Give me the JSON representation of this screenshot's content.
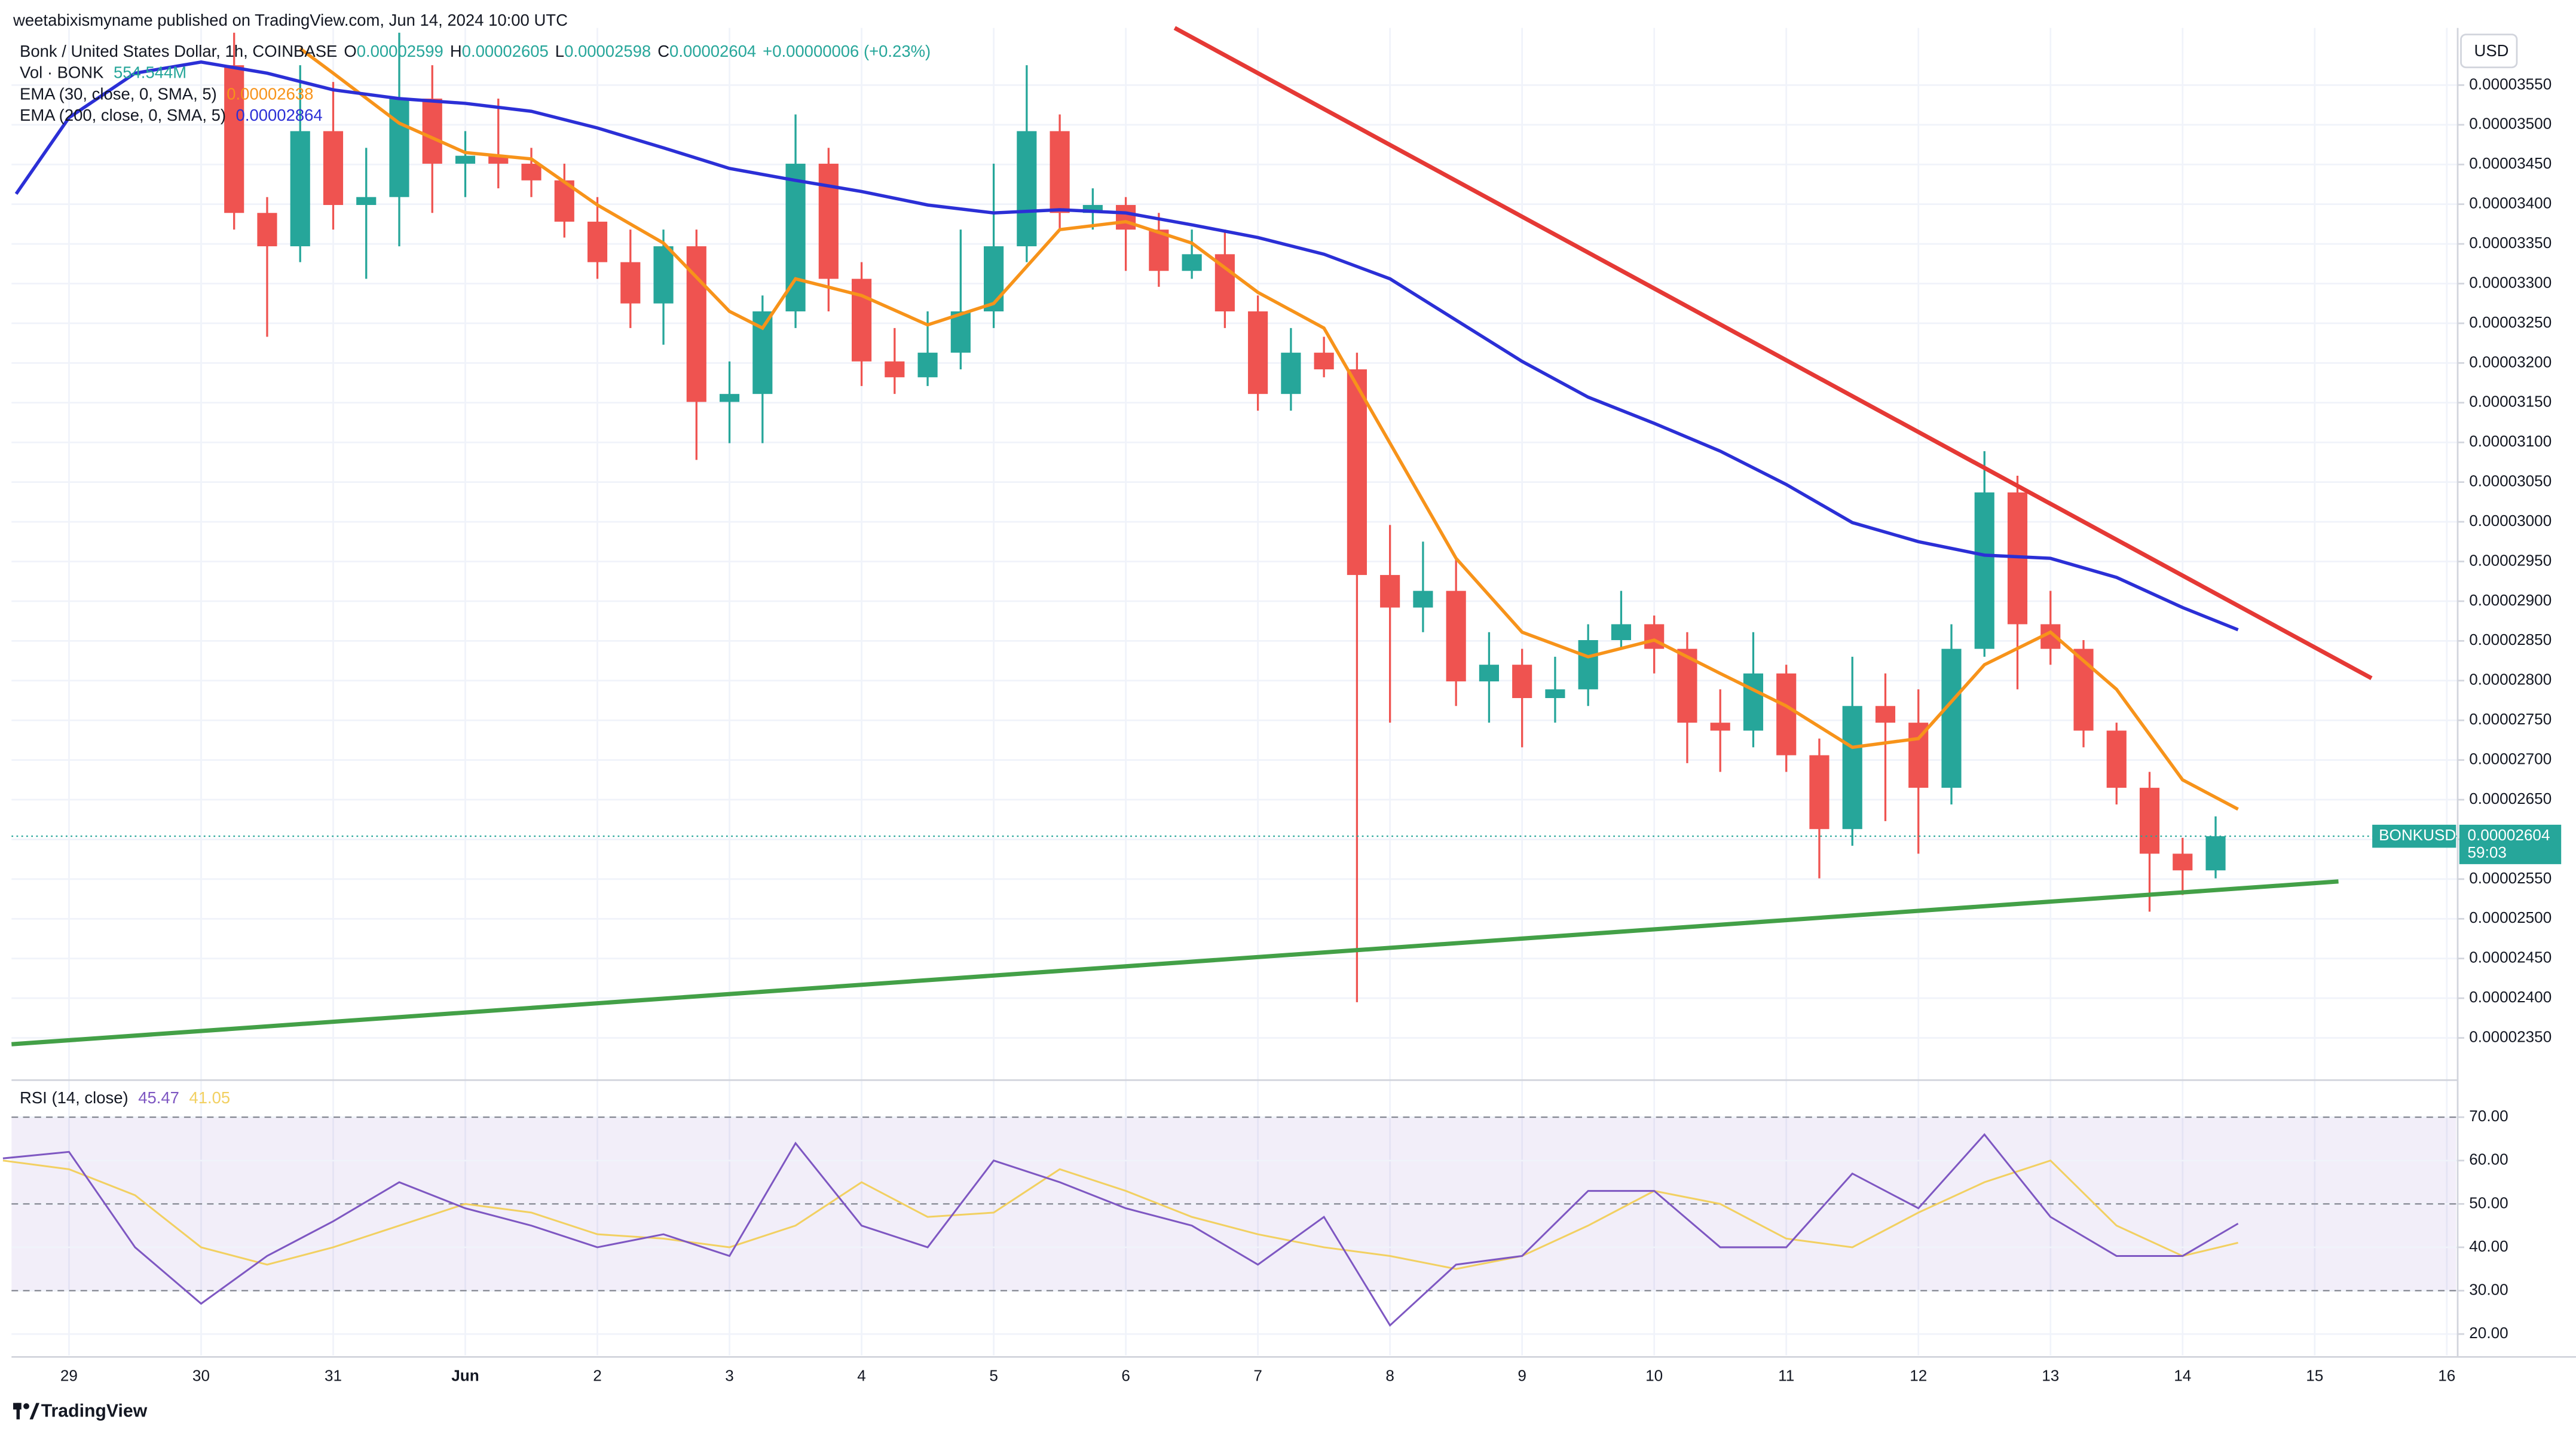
{
  "attribution": "weetabixismyname published on TradingView.com, Jun 14, 2024 10:00 UTC",
  "footer": "TradingView",
  "chart_data": [
    {
      "type": "candlestick",
      "title": "Bonk / United States Dollar, 1h, COINBASE",
      "ohlc_legend": [
        [
          "O",
          "0.00002599"
        ],
        [
          "H",
          "0.00002605"
        ],
        [
          "L",
          "0.00002598"
        ],
        [
          "C",
          "0.00002604"
        ]
      ],
      "change": "+0.00000006 (+0.23%)",
      "volume_legend": {
        "name": "Vol · BONK",
        "value": "554.544M"
      },
      "axis_unit": "USD",
      "symbol": "BONKUSD",
      "last_price": {
        "value": 2.604e-05,
        "label": "0.00002604"
      },
      "countdown": "59:03",
      "up_color": "#26a69a",
      "down_color": "#ef5350",
      "grid": true,
      "xlim": [
        -0.435,
        18.07
      ],
      "ylim": [
        2.302e-05,
        3.622e-05
      ],
      "yticks": [
        {
          "value": 2.35e-05,
          "label": "0.00002350"
        },
        {
          "value": 2.4e-05,
          "label": "0.00002400"
        },
        {
          "value": 2.45e-05,
          "label": "0.00002450"
        },
        {
          "value": 2.5e-05,
          "label": "0.00002500"
        },
        {
          "value": 2.55e-05,
          "label": "0.00002550"
        },
        {
          "value": 2.6e-05,
          "label": "0.00002600"
        },
        {
          "value": 2.65e-05,
          "label": "0.00002650"
        },
        {
          "value": 2.7e-05,
          "label": "0.00002700"
        },
        {
          "value": 2.75e-05,
          "label": "0.00002750"
        },
        {
          "value": 2.8e-05,
          "label": "0.00002800"
        },
        {
          "value": 2.85e-05,
          "label": "0.00002850"
        },
        {
          "value": 2.9e-05,
          "label": "0.00002900"
        },
        {
          "value": 2.95e-05,
          "label": "0.00002950"
        },
        {
          "value": 3e-05,
          "label": "0.00003000"
        },
        {
          "value": 3.05e-05,
          "label": "0.00003050"
        },
        {
          "value": 3.1e-05,
          "label": "0.00003100"
        },
        {
          "value": 3.15e-05,
          "label": "0.00003150"
        },
        {
          "value": 3.2e-05,
          "label": "0.00003200"
        },
        {
          "value": 3.25e-05,
          "label": "0.00003250"
        },
        {
          "value": 3.3e-05,
          "label": "0.00003300"
        },
        {
          "value": 3.35e-05,
          "label": "0.00003350"
        },
        {
          "value": 3.4e-05,
          "label": "0.00003400"
        },
        {
          "value": 3.45e-05,
          "label": "0.00003450"
        },
        {
          "value": 3.5e-05,
          "label": "0.00003500"
        },
        {
          "value": 3.55e-05,
          "label": "0.00003550"
        }
      ],
      "x": [
        1.25,
        1.5,
        1.75,
        2,
        2.25,
        2.5,
        2.75,
        3,
        3.25,
        3.5,
        3.75,
        4,
        4.25,
        4.5,
        4.75,
        5,
        5.25,
        5.5,
        5.75,
        6,
        6.25,
        6.5,
        6.75,
        7,
        7.25,
        7.5,
        7.75,
        8,
        8.25,
        8.5,
        8.75,
        9,
        9.25,
        9.5,
        9.75,
        10,
        10.25,
        10.5,
        10.75,
        11,
        11.25,
        11.5,
        11.75,
        12,
        12.25,
        12.5,
        12.75,
        13,
        13.25,
        13.5,
        13.75,
        14,
        14.25,
        14.5,
        14.75,
        15,
        15.25,
        15.5,
        15.75,
        16,
        16.25
      ],
      "open": [
        3.575e-05,
        3.389e-05,
        3.347e-05,
        3.492e-05,
        3.399e-05,
        3.409e-05,
        3.533e-05,
        3.451e-05,
        3.461e-05,
        3.451e-05,
        3.43e-05,
        3.378e-05,
        3.327e-05,
        3.275e-05,
        3.347e-05,
        3.151e-05,
        3.161e-05,
        3.265e-05,
        3.451e-05,
        3.306e-05,
        3.202e-05,
        3.182e-05,
        3.213e-05,
        3.265e-05,
        3.347e-05,
        3.492e-05,
        3.389e-05,
        3.399e-05,
        3.368e-05,
        3.316e-05,
        3.337e-05,
        3.265e-05,
        3.161e-05,
        3.213e-05,
        3.192e-05,
        2.933e-05,
        2.892e-05,
        2.913e-05,
        2.799e-05,
        2.82e-05,
        2.778e-05,
        2.789e-05,
        2.851e-05,
        2.871e-05,
        2.84e-05,
        2.747e-05,
        2.737e-05,
        2.809e-05,
        2.706e-05,
        2.613e-05,
        2.768e-05,
        2.747e-05,
        2.665e-05,
        2.84e-05,
        3.037e-05,
        2.871e-05,
        2.84e-05,
        2.737e-05,
        2.665e-05,
        2.582e-05,
        2.561e-05
      ],
      "high": [
        3.616e-05,
        3.409e-05,
        3.575e-05,
        3.554e-05,
        3.471e-05,
        3.616e-05,
        3.575e-05,
        3.492e-05,
        3.533e-05,
        3.471e-05,
        3.451e-05,
        3.409e-05,
        3.368e-05,
        3.368e-05,
        3.368e-05,
        3.202e-05,
        3.285e-05,
        3.513e-05,
        3.471e-05,
        3.327e-05,
        3.244e-05,
        3.265e-05,
        3.368e-05,
        3.451e-05,
        3.575e-05,
        3.513e-05,
        3.42e-05,
        3.409e-05,
        3.389e-05,
        3.368e-05,
        3.368e-05,
        3.285e-05,
        3.244e-05,
        3.233e-05,
        3.213e-05,
        2.996e-05,
        2.975e-05,
        2.954e-05,
        2.861e-05,
        2.84e-05,
        2.83e-05,
        2.871e-05,
        2.913e-05,
        2.882e-05,
        2.861e-05,
        2.789e-05,
        2.861e-05,
        2.82e-05,
        2.727e-05,
        2.83e-05,
        2.809e-05,
        2.789e-05,
        2.871e-05,
        3.089e-05,
        3.058e-05,
        2.913e-05,
        2.851e-05,
        2.747e-05,
        2.685e-05,
        2.602e-05,
        2.629e-05
      ],
      "low": [
        3.368e-05,
        3.233e-05,
        3.327e-05,
        3.368e-05,
        3.306e-05,
        3.347e-05,
        3.389e-05,
        3.409e-05,
        3.42e-05,
        3.409e-05,
        3.358e-05,
        3.306e-05,
        3.244e-05,
        3.223e-05,
        3.078e-05,
        3.099e-05,
        3.099e-05,
        3.244e-05,
        3.265e-05,
        3.171e-05,
        3.161e-05,
        3.171e-05,
        3.192e-05,
        3.244e-05,
        3.327e-05,
        3.368e-05,
        3.368e-05,
        3.316e-05,
        3.296e-05,
        3.306e-05,
        3.244e-05,
        3.14e-05,
        3.14e-05,
        3.182e-05,
        2.395e-05,
        2.747e-05,
        2.861e-05,
        2.768e-05,
        2.747e-05,
        2.716e-05,
        2.747e-05,
        2.768e-05,
        2.84e-05,
        2.809e-05,
        2.696e-05,
        2.685e-05,
        2.716e-05,
        2.685e-05,
        2.551e-05,
        2.592e-05,
        2.623e-05,
        2.582e-05,
        2.644e-05,
        2.83e-05,
        2.789e-05,
        2.82e-05,
        2.716e-05,
        2.644e-05,
        2.509e-05,
        2.53e-05,
        2.551e-05
      ],
      "close": [
        3.389e-05,
        3.347e-05,
        3.492e-05,
        3.399e-05,
        3.409e-05,
        3.533e-05,
        3.451e-05,
        3.461e-05,
        3.451e-05,
        3.43e-05,
        3.378e-05,
        3.327e-05,
        3.275e-05,
        3.347e-05,
        3.151e-05,
        3.161e-05,
        3.265e-05,
        3.451e-05,
        3.306e-05,
        3.202e-05,
        3.182e-05,
        3.213e-05,
        3.265e-05,
        3.347e-05,
        3.492e-05,
        3.389e-05,
        3.399e-05,
        3.368e-05,
        3.316e-05,
        3.337e-05,
        3.265e-05,
        3.161e-05,
        3.213e-05,
        3.192e-05,
        2.933e-05,
        2.892e-05,
        2.913e-05,
        2.799e-05,
        2.82e-05,
        2.778e-05,
        2.789e-05,
        2.851e-05,
        2.871e-05,
        2.84e-05,
        2.747e-05,
        2.737e-05,
        2.809e-05,
        2.706e-05,
        2.613e-05,
        2.768e-05,
        2.747e-05,
        2.665e-05,
        2.84e-05,
        3.037e-05,
        2.871e-05,
        2.84e-05,
        2.737e-05,
        2.665e-05,
        2.582e-05,
        2.561e-05,
        2.604e-05
      ],
      "lines": [
        {
          "name": "EMA (30, close, 0, SMA, 5)",
          "last": "0.00002638",
          "color": "#f7931a",
          "x": [
            1.75,
            2,
            2.5,
            3,
            3.5,
            4,
            4.5,
            5,
            5.25,
            5.5,
            6,
            6.5,
            7,
            7.5,
            8,
            8.5,
            9,
            9.5,
            10,
            10.5,
            11,
            11.5,
            12,
            12.5,
            13,
            13.5,
            14,
            14.5,
            15,
            15.5,
            16,
            16.42
          ],
          "values": [
            3.596e-05,
            3.565e-05,
            3.502e-05,
            3.465e-05,
            3.457e-05,
            3.399e-05,
            3.351e-05,
            3.265e-05,
            3.244e-05,
            3.306e-05,
            3.285e-05,
            3.248e-05,
            3.275e-05,
            3.368e-05,
            3.378e-05,
            3.351e-05,
            3.289e-05,
            3.244e-05,
            3.099e-05,
            2.954e-05,
            2.861e-05,
            2.83e-05,
            2.851e-05,
            2.809e-05,
            2.768e-05,
            2.716e-05,
            2.727e-05,
            2.82e-05,
            2.861e-05,
            2.789e-05,
            2.675e-05,
            2.638e-05
          ]
        },
        {
          "name": "EMA (200, close, 0, SMA, 5)",
          "last": "0.00002864",
          "color": "#2b2fd6",
          "x": [
            -0.4,
            0,
            0.5,
            1,
            1.5,
            2,
            2.5,
            3,
            3.5,
            4,
            4.5,
            5,
            5.5,
            6,
            6.5,
            7,
            7.5,
            8,
            8.5,
            9,
            9.5,
            10,
            10.5,
            11,
            11.5,
            12,
            12.5,
            13,
            13.5,
            14,
            14.5,
            15,
            15.5,
            16,
            16.42
          ],
          "values": [
            3.413e-05,
            3.509e-05,
            3.565e-05,
            3.579e-05,
            3.565e-05,
            3.544e-05,
            3.533e-05,
            3.527e-05,
            3.517e-05,
            3.496e-05,
            3.471e-05,
            3.445e-05,
            3.43e-05,
            3.416e-05,
            3.399e-05,
            3.389e-05,
            3.393e-05,
            3.389e-05,
            3.374e-05,
            3.358e-05,
            3.337e-05,
            3.306e-05,
            3.254e-05,
            3.202e-05,
            3.157e-05,
            3.124e-05,
            3.089e-05,
            3.047e-05,
            2.999e-05,
            2.975e-05,
            2.958e-05,
            2.954e-05,
            2.93e-05,
            2.892e-05,
            2.864e-05
          ]
        }
      ],
      "trendlines": [
        {
          "color": "#e53935",
          "x": [
            8.37,
            17.43
          ],
          "values": [
            3.622e-05,
            2.803e-05
          ]
        },
        {
          "color": "#43a047",
          "x": [
            -0.435,
            17.18
          ],
          "values": [
            2.342e-05,
            2.547e-05
          ]
        }
      ]
    },
    {
      "type": "line",
      "title": "RSI (14, close)",
      "grid": true,
      "xlim": [
        -0.435,
        18.07
      ],
      "ylim": [
        15.1,
        77.6
      ],
      "yticks": [
        {
          "value": 20,
          "label": "20.00"
        },
        {
          "value": 30,
          "label": "30.00"
        },
        {
          "value": 40,
          "label": "40.00"
        },
        {
          "value": 50,
          "label": "50.00"
        },
        {
          "value": 60,
          "label": "60.00"
        },
        {
          "value": 70,
          "label": "70.00"
        }
      ],
      "levels": [
        30,
        50,
        70
      ],
      "band_color": "#7e57c2",
      "xticks": [
        {
          "value": 0,
          "label": "29"
        },
        {
          "value": 1,
          "label": "30"
        },
        {
          "value": 2,
          "label": "31"
        },
        {
          "value": 3,
          "label": "Jun"
        },
        {
          "value": 4,
          "label": "2"
        },
        {
          "value": 5,
          "label": "3"
        },
        {
          "value": 6,
          "label": "4"
        },
        {
          "value": 7,
          "label": "5"
        },
        {
          "value": 8,
          "label": "6"
        },
        {
          "value": 9,
          "label": "7"
        },
        {
          "value": 10,
          "label": "8"
        },
        {
          "value": 11,
          "label": "9"
        },
        {
          "value": 12,
          "label": "10"
        },
        {
          "value": 13,
          "label": "11"
        },
        {
          "value": 14,
          "label": "12"
        },
        {
          "value": 15,
          "label": "13"
        },
        {
          "value": 16,
          "label": "14"
        },
        {
          "value": 17,
          "label": "15"
        },
        {
          "value": 18,
          "label": "16"
        }
      ],
      "series": [
        {
          "last": "45.47",
          "color": "#7e57c2",
          "x": [
            -0.5,
            0,
            0.5,
            1,
            1.5,
            2,
            2.5,
            3,
            3.5,
            4,
            4.5,
            5,
            5.5,
            6,
            6.5,
            7,
            7.5,
            8,
            8.5,
            9,
            9.5,
            10,
            10.5,
            11,
            11.5,
            12,
            12.5,
            13,
            13.5,
            14,
            14.5,
            15,
            15.5,
            16,
            16.42
          ],
          "values": [
            60.5,
            62,
            40,
            27,
            38,
            46,
            55,
            49,
            45,
            40,
            43,
            38,
            64,
            45,
            40,
            60,
            55,
            49,
            45,
            36,
            47,
            22,
            36,
            38,
            53,
            53,
            40,
            40,
            57,
            49,
            66,
            47,
            38,
            38,
            45.47
          ]
        },
        {
          "last": "41.05",
          "color": "#f2d061",
          "x": [
            -0.5,
            0,
            0.5,
            1,
            1.5,
            2,
            2.5,
            3,
            3.5,
            4,
            4.5,
            5,
            5.5,
            6,
            6.5,
            7,
            7.5,
            8,
            8.5,
            9,
            9.5,
            10,
            10.5,
            11,
            11.5,
            12,
            12.5,
            13,
            13.5,
            14,
            14.5,
            15,
            15.5,
            16,
            16.42
          ],
          "values": [
            60,
            58,
            52,
            40,
            36,
            40,
            45,
            50,
            48,
            43,
            42,
            40,
            45,
            55,
            47,
            48,
            58,
            53,
            47,
            43,
            40,
            38,
            35,
            38,
            45,
            53,
            50,
            42,
            40,
            48,
            55,
            60,
            45,
            38,
            41.05
          ]
        }
      ]
    }
  ]
}
